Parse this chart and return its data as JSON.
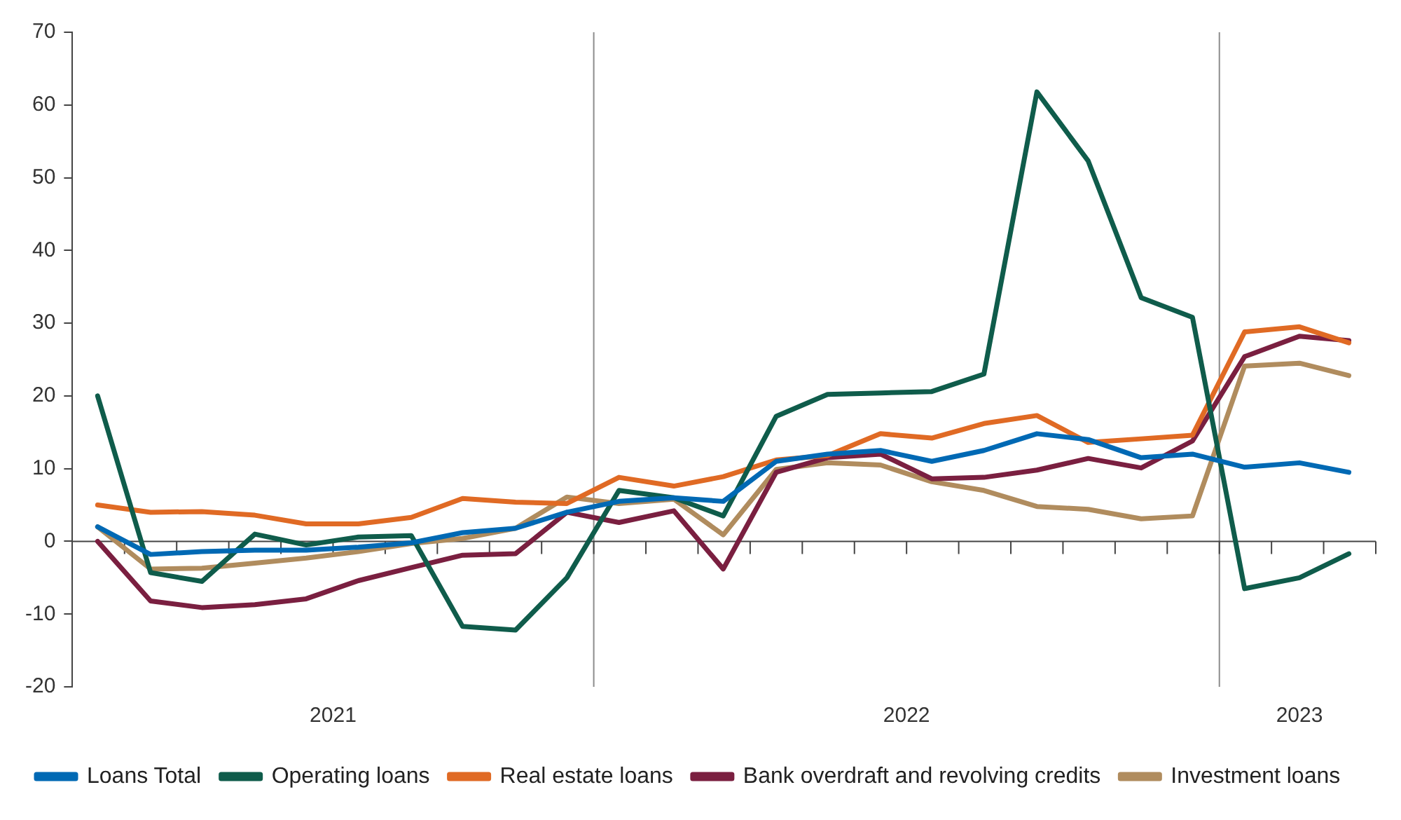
{
  "chart_data": {
    "type": "line",
    "x": [
      "2021-03-16",
      "2021-04-16",
      "2021-05-16",
      "2021-06-16",
      "2021-07-16",
      "2021-08-16",
      "2021-09-16",
      "2021-10-16",
      "2021-11-16",
      "2021-12-16",
      "2022-01-16",
      "2022-02-16",
      "2022-03-16",
      "2022-04-16",
      "2022-05-16",
      "2022-06-16",
      "2022-07-16",
      "2022-08-16",
      "2022-09-16",
      "2022-10-16",
      "2022-11-16",
      "2022-12-16",
      "2023-01-16",
      "2023-02-16",
      "2023-03-16"
    ],
    "series": [
      {
        "name": "Loans Total",
        "color": "#0069b4",
        "values": [
          2.0,
          -1.8,
          -1.4,
          -1.2,
          -1.2,
          -0.8,
          -0.2,
          1.2,
          1.8,
          4.0,
          5.5,
          6.0,
          5.5,
          11.0,
          12.0,
          12.5,
          11.0,
          12.5,
          14.8,
          14.0,
          11.5,
          12.0,
          10.2,
          10.8,
          9.5
        ]
      },
      {
        "name": "Operating loans",
        "color": "#0f5c4b",
        "values": [
          20,
          -4.3,
          -5.5,
          1.0,
          -0.5,
          0.6,
          0.8,
          -11.7,
          -12.2,
          -5.0,
          7.0,
          6.0,
          3.5,
          17.2,
          20.2,
          20.4,
          20.6,
          23.0,
          61.8,
          52.3,
          33.5,
          30.8,
          -6.5,
          -5.0,
          -1.7
        ]
      },
      {
        "name": "Real estate loans",
        "color": "#e06a24",
        "values": [
          5.0,
          4.0,
          4.1,
          3.6,
          2.4,
          2.4,
          3.3,
          5.9,
          5.4,
          5.2,
          8.8,
          7.6,
          8.9,
          11.2,
          11.8,
          14.8,
          14.2,
          16.2,
          17.3,
          13.6,
          14.1,
          14.6,
          28.8,
          29.5,
          27.3
        ]
      },
      {
        "name": "Bank overdraft and revolving credits",
        "color": "#7a1f40",
        "values": [
          0,
          -8.2,
          -9.1,
          -8.7,
          -7.9,
          -5.4,
          -3.6,
          -1.9,
          -1.7,
          4.0,
          2.6,
          4.2,
          -3.8,
          9.5,
          11.5,
          12.0,
          8.6,
          8.8,
          9.8,
          11.4,
          10.1,
          13.8,
          25.4,
          28.2,
          27.6
        ]
      },
      {
        "name": "Investment loans",
        "color": "#b08c5e",
        "values": [
          2.0,
          -3.8,
          -3.7,
          -3.0,
          -2.3,
          -1.4,
          -0.3,
          0.4,
          1.8,
          6.1,
          5.2,
          5.8,
          0.9,
          9.9,
          10.8,
          10.5,
          8.2,
          7.0,
          4.8,
          4.4,
          3.1,
          3.5,
          24.1,
          24.5,
          22.8
        ]
      }
    ],
    "xlim": [
      "2021-03",
      "2023-04"
    ],
    "xticks": [
      {
        "value": "2021-04",
        "label": null
      },
      {
        "value": "2021-05",
        "label": null
      },
      {
        "value": "2021-06",
        "label": null
      },
      {
        "value": "2021-07",
        "label": null
      },
      {
        "value": "2021-08",
        "label": null
      },
      {
        "value": "2021-09",
        "label": null
      },
      {
        "value": "2021-10",
        "label": null
      },
      {
        "value": "2021-11",
        "label": null
      },
      {
        "value": "2021-12",
        "label": null
      },
      {
        "value": "2022-01",
        "label": null
      },
      {
        "value": "2022-02",
        "label": null
      },
      {
        "value": "2022-03",
        "label": null
      },
      {
        "value": "2022-04",
        "label": null
      },
      {
        "value": "2022-05",
        "label": null
      },
      {
        "value": "2022-06",
        "label": null
      },
      {
        "value": "2022-07",
        "label": null
      },
      {
        "value": "2022-08",
        "label": null
      },
      {
        "value": "2022-09",
        "label": null
      },
      {
        "value": "2022-10",
        "label": null
      },
      {
        "value": "2022-11",
        "label": null
      },
      {
        "value": "2022-12",
        "label": null
      },
      {
        "value": "2023-01",
        "label": null
      },
      {
        "value": "2023-02",
        "label": null
      },
      {
        "value": "2023-03",
        "label": null
      },
      {
        "value": "2023-04",
        "label": null
      },
      {
        "value": "2021-08",
        "label": "2021"
      },
      {
        "value": "2022-07",
        "label": "2022"
      },
      {
        "value": "2023-02-16",
        "label": "2023"
      }
    ],
    "ylim": [
      -20,
      70
    ],
    "yticks": [
      -20,
      -10,
      0,
      10,
      20,
      30,
      40,
      50,
      60,
      70
    ],
    "ref_lines": [
      {
        "axis": "x",
        "value": "2022-01",
        "color": "#8c8c8c"
      },
      {
        "axis": "x",
        "value": "2023-01",
        "color": "#8c8c8c"
      }
    ],
    "grid": false,
    "legend": "bottom",
    "marker": "none",
    "line_style": "solid"
  }
}
